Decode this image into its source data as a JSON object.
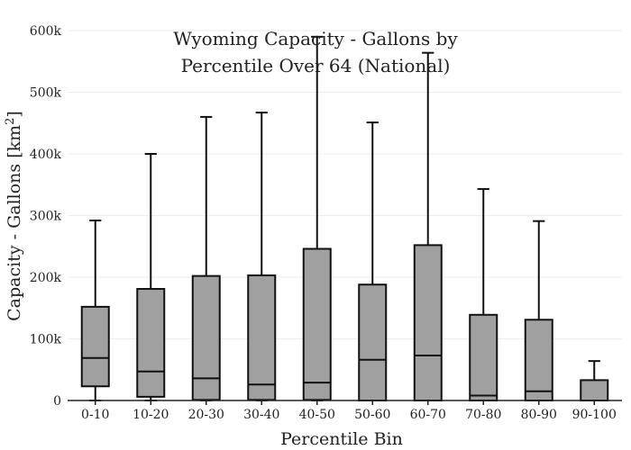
{
  "chart_data": {
    "type": "box",
    "title_lines": [
      "Wyoming Capacity - Gallons by",
      "Percentile Over 64 (National)"
    ],
    "xlabel": "Percentile Bin",
    "ylabel_main": "Capacity - Gallons  [km",
    "ylabel_sup": "2",
    "ylabel_end": "]",
    "ylim": [
      0,
      600000
    ],
    "yticks": [
      {
        "value": 0,
        "label": "0"
      },
      {
        "value": 100000,
        "label": "100k"
      },
      {
        "value": 200000,
        "label": "200k"
      },
      {
        "value": 300000,
        "label": "300k"
      },
      {
        "value": 400000,
        "label": "400k"
      },
      {
        "value": 500000,
        "label": "500k"
      },
      {
        "value": 600000,
        "label": "600k"
      }
    ],
    "grid": true,
    "categories": [
      "0-10",
      "10-20",
      "20-30",
      "30-40",
      "40-50",
      "50-60",
      "60-70",
      "70-80",
      "80-90",
      "90-100"
    ],
    "boxes": [
      {
        "min": 0,
        "q1": 23000,
        "median": 69000,
        "q3": 152000,
        "max": 292000
      },
      {
        "min": 0,
        "q1": 6000,
        "median": 47000,
        "q3": 181000,
        "max": 400000
      },
      {
        "min": 0,
        "q1": 1000,
        "median": 36000,
        "q3": 202000,
        "max": 460000
      },
      {
        "min": 0,
        "q1": 1000,
        "median": 26000,
        "q3": 203000,
        "max": 467000
      },
      {
        "min": 0,
        "q1": 1000,
        "median": 29000,
        "q3": 246000,
        "max": 590000
      },
      {
        "min": 0,
        "q1": 0,
        "median": 66000,
        "q3": 188000,
        "max": 451000
      },
      {
        "min": 0,
        "q1": 0,
        "median": 73000,
        "q3": 252000,
        "max": 564000
      },
      {
        "min": 0,
        "q1": 0,
        "median": 8000,
        "q3": 139000,
        "max": 343000
      },
      {
        "min": 0,
        "q1": 0,
        "median": 15000,
        "q3": 131000,
        "max": 291000
      },
      {
        "min": 0,
        "q1": 0,
        "median": 0,
        "q3": 33000,
        "max": 64000
      }
    ],
    "colors": {
      "box_fill": "#a0a0a0",
      "box_stroke": "#111111",
      "grid": "#eeeeee"
    }
  }
}
